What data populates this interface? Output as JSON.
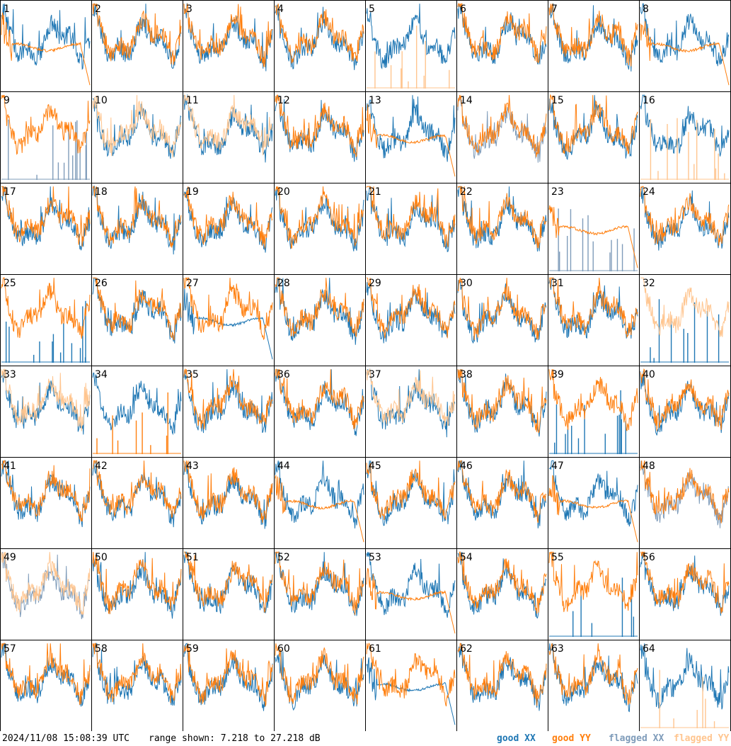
{
  "footer": {
    "timestamp": "2024/11/08 15:08:39 UTC",
    "range_text": "range shown: 7.218 to 27.218 dB"
  },
  "legend": {
    "good_xx": "good XX",
    "good_yy": "good YY",
    "flagged_xx": "flagged XX",
    "flagged_yy": "flagged YY"
  },
  "colors": {
    "good_xx": "#1f77b4",
    "good_yy": "#ff7f0e",
    "flagged_xx": "#7f9cba",
    "flagged_yy": "#ffc58f"
  },
  "chart_data": {
    "type": "line",
    "ylim": [
      7.218,
      27.218
    ],
    "grid_rows": 8,
    "grid_cols": 8,
    "panels": [
      {
        "label": "1",
        "xx": "good",
        "yy": "good",
        "yy_shape": "flat-drop"
      },
      {
        "label": "2",
        "xx": "good",
        "yy": "good"
      },
      {
        "label": "3",
        "xx": "good",
        "yy": "good"
      },
      {
        "label": "4",
        "xx": "good",
        "yy": "good"
      },
      {
        "label": "5",
        "xx": "good",
        "yy": "flagged-spikes"
      },
      {
        "label": "6",
        "xx": "good",
        "yy": "good"
      },
      {
        "label": "7",
        "xx": "good",
        "yy": "good"
      },
      {
        "label": "8",
        "xx": "good",
        "yy": "good",
        "yy_shape": "flat-drop"
      },
      {
        "label": "9",
        "xx": "flagged-spikes",
        "yy": "good"
      },
      {
        "label": "10",
        "xx": "good",
        "yy": "flagged"
      },
      {
        "label": "11",
        "xx": "good",
        "yy": "flagged"
      },
      {
        "label": "12",
        "xx": "good",
        "yy": "good"
      },
      {
        "label": "13",
        "xx": "good",
        "yy": "good",
        "yy_shape": "flat-drop"
      },
      {
        "label": "14",
        "xx": "flagged",
        "yy": "good"
      },
      {
        "label": "15",
        "xx": "good",
        "yy": "good"
      },
      {
        "label": "16",
        "xx": "good",
        "yy": "flagged-spikes"
      },
      {
        "label": "17",
        "xx": "good",
        "yy": "good"
      },
      {
        "label": "18",
        "xx": "good",
        "yy": "good"
      },
      {
        "label": "19",
        "xx": "good",
        "yy": "good"
      },
      {
        "label": "20",
        "xx": "good",
        "yy": "good"
      },
      {
        "label": "21",
        "xx": "good",
        "yy": "good"
      },
      {
        "label": "22",
        "xx": "good",
        "yy": "good"
      },
      {
        "label": "23",
        "xx": "flagged-spikes",
        "yy": "good",
        "yy_shape": "flat-drop"
      },
      {
        "label": "24",
        "xx": "good",
        "yy": "good"
      },
      {
        "label": "25",
        "xx": "good-spikes",
        "yy": "good"
      },
      {
        "label": "26",
        "xx": "good",
        "yy": "good"
      },
      {
        "label": "27",
        "xx": "good",
        "xx_shape": "flat-drop",
        "yy": "good"
      },
      {
        "label": "28",
        "xx": "good",
        "yy": "good"
      },
      {
        "label": "29",
        "xx": "good",
        "yy": "good"
      },
      {
        "label": "30",
        "xx": "good",
        "yy": "good"
      },
      {
        "label": "31",
        "xx": "good",
        "yy": "good"
      },
      {
        "label": "32",
        "xx": "good-spikes",
        "yy": "flagged"
      },
      {
        "label": "33",
        "xx": "good",
        "yy": "flagged"
      },
      {
        "label": "34",
        "xx": "good",
        "yy": "good-spikes"
      },
      {
        "label": "35",
        "xx": "good",
        "yy": "good"
      },
      {
        "label": "36",
        "xx": "good",
        "yy": "good"
      },
      {
        "label": "37",
        "xx": "good",
        "yy": "flagged"
      },
      {
        "label": "38",
        "xx": "good",
        "yy": "good"
      },
      {
        "label": "39",
        "xx": "good-spikes",
        "yy": "good"
      },
      {
        "label": "40",
        "xx": "good",
        "yy": "good"
      },
      {
        "label": "41",
        "xx": "good",
        "yy": "good"
      },
      {
        "label": "42",
        "xx": "good",
        "yy": "good"
      },
      {
        "label": "43",
        "xx": "good",
        "yy": "good"
      },
      {
        "label": "44",
        "xx": "good",
        "yy": "good",
        "yy_shape": "flat-drop"
      },
      {
        "label": "45",
        "xx": "good",
        "yy": "good"
      },
      {
        "label": "46",
        "xx": "good",
        "yy": "good"
      },
      {
        "label": "47",
        "xx": "good",
        "yy": "good",
        "yy_shape": "flat-drop"
      },
      {
        "label": "48",
        "xx": "flagged",
        "yy": "good"
      },
      {
        "label": "49",
        "xx": "flagged",
        "yy": "flagged"
      },
      {
        "label": "50",
        "xx": "good",
        "yy": "good"
      },
      {
        "label": "51",
        "xx": "good",
        "yy": "good"
      },
      {
        "label": "52",
        "xx": "good",
        "yy": "good"
      },
      {
        "label": "53",
        "xx": "good",
        "yy": "good",
        "yy_shape": "flat-drop"
      },
      {
        "label": "54",
        "xx": "good",
        "yy": "good"
      },
      {
        "label": "55",
        "xx": "good-spikes",
        "yy": "good"
      },
      {
        "label": "56",
        "xx": "good",
        "yy": "good"
      },
      {
        "label": "57",
        "xx": "good",
        "yy": "good"
      },
      {
        "label": "58",
        "xx": "good",
        "yy": "good"
      },
      {
        "label": "59",
        "xx": "good",
        "yy": "good"
      },
      {
        "label": "60",
        "xx": "good",
        "yy": "good"
      },
      {
        "label": "61",
        "xx": "good",
        "xx_shape": "flat-drop",
        "yy": "good"
      },
      {
        "label": "62",
        "xx": "good",
        "yy": "good"
      },
      {
        "label": "63",
        "xx": "good",
        "yy": "good"
      },
      {
        "label": "64",
        "xx": "good",
        "yy": "flagged-spikes"
      }
    ]
  }
}
